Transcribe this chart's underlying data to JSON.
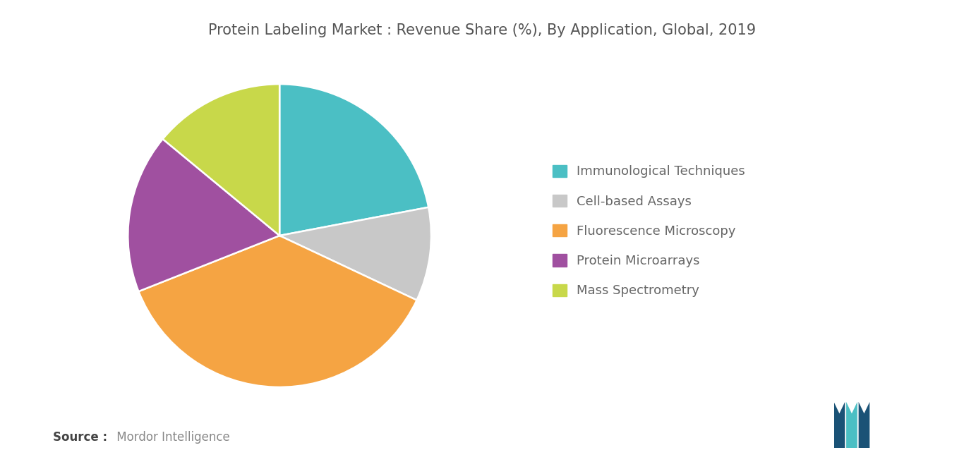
{
  "title": "Protein Labeling Market : Revenue Share (%), By Application, Global, 2019",
  "slices": [
    {
      "label": "Immunological Techniques",
      "value": 22,
      "color": "#4BBFC4"
    },
    {
      "label": "Cell-based Assays",
      "value": 10,
      "color": "#C8C8C8"
    },
    {
      "label": "Fluorescence Microscopy",
      "value": 37,
      "color": "#F5A443"
    },
    {
      "label": "Protein Microarrays",
      "value": 17,
      "color": "#A050A0"
    },
    {
      "label": "Mass Spectrometry",
      "value": 14,
      "color": "#C8D84A"
    }
  ],
  "source_bold": "Source :",
  "source_text": " Mordor Intelligence",
  "title_color": "#555555",
  "source_color": "#888888",
  "legend_text_color": "#666666",
  "background_color": "#ffffff",
  "startangle": 90
}
